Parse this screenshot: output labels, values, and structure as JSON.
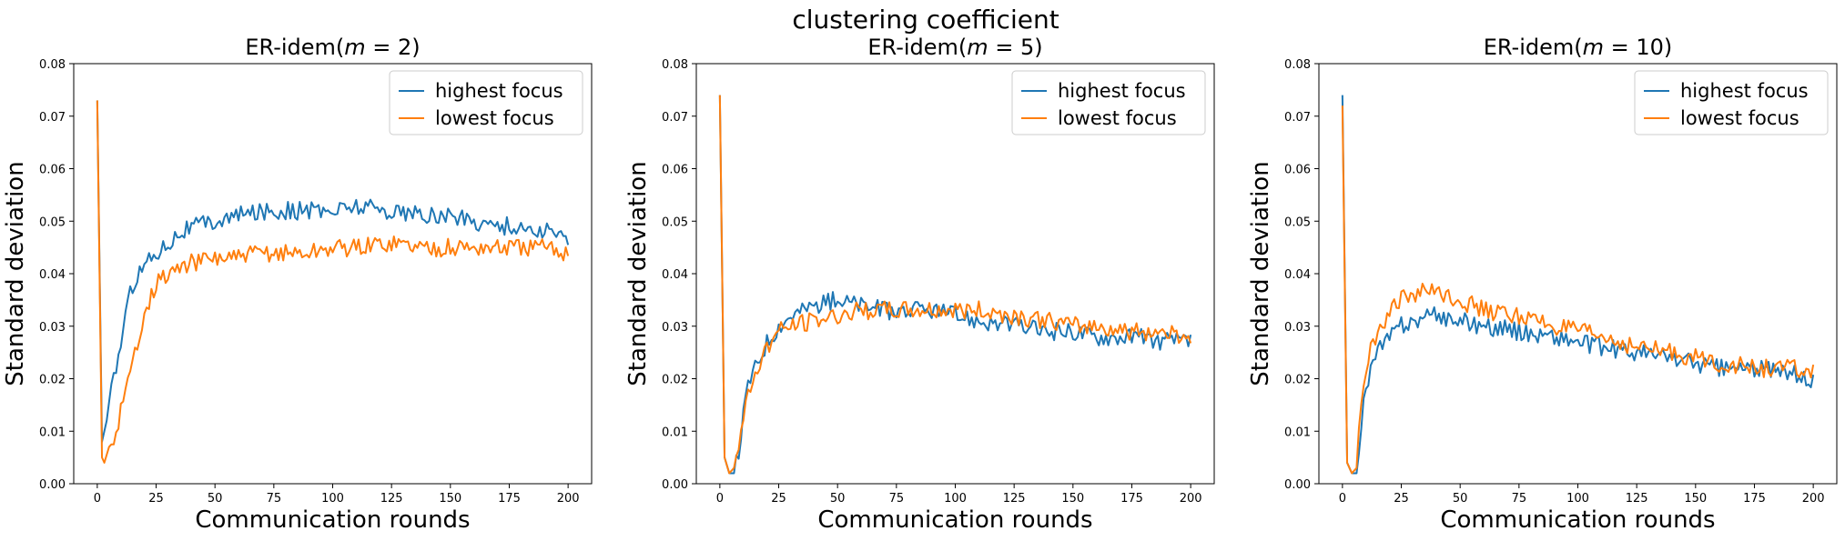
{
  "suptitle": "clustering coefficient",
  "colors": {
    "highest": "#1f77b4",
    "lowest": "#ff7f0e"
  },
  "chart_data": [
    {
      "type": "line",
      "title_prefix": "ER-idem(",
      "title_var": "m",
      "title_eq": " = 2",
      "title_suffix": ")",
      "xlabel": "Communication rounds",
      "ylabel": "Standard deviation",
      "xlim": [
        -10,
        210
      ],
      "ylim": [
        0,
        0.08
      ],
      "xticks": [
        0,
        25,
        50,
        75,
        100,
        125,
        150,
        175,
        200
      ],
      "yticks": [
        "0.00",
        "0.01",
        "0.02",
        "0.03",
        "0.04",
        "0.05",
        "0.06",
        "0.07",
        "0.08"
      ],
      "legend": [
        "highest focus",
        "lowest focus"
      ],
      "legend_loc": "upper right",
      "series": [
        {
          "name": "highest focus",
          "x": [
            0,
            2,
            4,
            6,
            8,
            10,
            12,
            15,
            20,
            25,
            30,
            35,
            40,
            50,
            60,
            70,
            80,
            90,
            100,
            110,
            125,
            140,
            150,
            160,
            175,
            190,
            200
          ],
          "values": [
            0.073,
            0.008,
            0.012,
            0.019,
            0.022,
            0.027,
            0.032,
            0.038,
            0.042,
            0.044,
            0.046,
            0.048,
            0.049,
            0.05,
            0.051,
            0.052,
            0.052,
            0.052,
            0.052,
            0.053,
            0.052,
            0.051,
            0.051,
            0.05,
            0.049,
            0.048,
            0.047
          ]
        },
        {
          "name": "lowest focus",
          "x": [
            0,
            2,
            3,
            5,
            7,
            10,
            12,
            15,
            20,
            25,
            30,
            35,
            40,
            50,
            60,
            70,
            80,
            90,
            100,
            110,
            125,
            140,
            150,
            160,
            175,
            190,
            200
          ],
          "values": [
            0.073,
            0.005,
            0.004,
            0.007,
            0.008,
            0.014,
            0.017,
            0.023,
            0.033,
            0.038,
            0.04,
            0.041,
            0.042,
            0.043,
            0.043,
            0.044,
            0.044,
            0.044,
            0.045,
            0.045,
            0.046,
            0.045,
            0.045,
            0.045,
            0.045,
            0.045,
            0.044
          ]
        }
      ]
    },
    {
      "type": "line",
      "title_prefix": "ER-idem(",
      "title_var": "m",
      "title_eq": " = 5",
      "title_suffix": ")",
      "xlabel": "Communication rounds",
      "ylabel": "Standard deviation",
      "xlim": [
        -10,
        210
      ],
      "ylim": [
        0,
        0.08
      ],
      "xticks": [
        0,
        25,
        50,
        75,
        100,
        125,
        150,
        175,
        200
      ],
      "yticks": [
        "0.00",
        "0.01",
        "0.02",
        "0.03",
        "0.04",
        "0.05",
        "0.06",
        "0.07",
        "0.08"
      ],
      "legend": [
        "highest focus",
        "lowest focus"
      ],
      "legend_loc": "upper right",
      "series": [
        {
          "name": "highest focus",
          "x": [
            0,
            2,
            4,
            6,
            8,
            10,
            12,
            15,
            20,
            25,
            30,
            40,
            50,
            60,
            70,
            80,
            90,
            100,
            110,
            125,
            140,
            150,
            160,
            175,
            190,
            200
          ],
          "values": [
            0.074,
            0.005,
            0.002,
            0.002,
            0.006,
            0.013,
            0.019,
            0.022,
            0.027,
            0.03,
            0.032,
            0.034,
            0.035,
            0.034,
            0.033,
            0.033,
            0.033,
            0.032,
            0.031,
            0.03,
            0.029,
            0.029,
            0.028,
            0.028,
            0.027,
            0.027
          ]
        },
        {
          "name": "lowest focus",
          "x": [
            0,
            2,
            4,
            6,
            8,
            10,
            12,
            15,
            20,
            25,
            30,
            40,
            50,
            60,
            70,
            80,
            90,
            100,
            110,
            125,
            140,
            150,
            160,
            175,
            190,
            200
          ],
          "values": [
            0.074,
            0.005,
            0.002,
            0.003,
            0.007,
            0.012,
            0.017,
            0.021,
            0.026,
            0.029,
            0.03,
            0.031,
            0.032,
            0.033,
            0.033,
            0.033,
            0.033,
            0.033,
            0.033,
            0.032,
            0.031,
            0.03,
            0.03,
            0.029,
            0.029,
            0.028
          ]
        }
      ]
    },
    {
      "type": "line",
      "title_prefix": "ER-idem(",
      "title_var": "m",
      "title_eq": " = 10",
      "title_suffix": ")",
      "xlabel": "Communication rounds",
      "ylabel": "Standard deviation",
      "xlim": [
        -10,
        210
      ],
      "ylim": [
        0,
        0.08
      ],
      "xticks": [
        0,
        25,
        50,
        75,
        100,
        125,
        150,
        175,
        200
      ],
      "yticks": [
        "0.00",
        "0.01",
        "0.02",
        "0.03",
        "0.04",
        "0.05",
        "0.06",
        "0.07",
        "0.08"
      ],
      "legend": [
        "highest focus",
        "lowest focus"
      ],
      "legend_loc": "upper right",
      "series": [
        {
          "name": "highest focus",
          "x": [
            0,
            2,
            4,
            6,
            8,
            10,
            12,
            15,
            20,
            25,
            30,
            40,
            50,
            60,
            75,
            90,
            100,
            110,
            125,
            140,
            150,
            160,
            175,
            190,
            200
          ],
          "values": [
            0.074,
            0.004,
            0.002,
            0.002,
            0.012,
            0.018,
            0.022,
            0.025,
            0.028,
            0.03,
            0.031,
            0.032,
            0.031,
            0.03,
            0.029,
            0.028,
            0.027,
            0.026,
            0.025,
            0.024,
            0.023,
            0.022,
            0.022,
            0.021,
            0.02
          ]
        },
        {
          "name": "lowest focus",
          "x": [
            0,
            2,
            4,
            6,
            8,
            10,
            12,
            15,
            20,
            25,
            30,
            40,
            50,
            60,
            75,
            90,
            100,
            110,
            125,
            140,
            150,
            160,
            175,
            190,
            200
          ],
          "values": [
            0.072,
            0.004,
            0.002,
            0.003,
            0.016,
            0.022,
            0.026,
            0.029,
            0.033,
            0.035,
            0.036,
            0.037,
            0.035,
            0.033,
            0.032,
            0.03,
            0.029,
            0.028,
            0.026,
            0.025,
            0.024,
            0.023,
            0.022,
            0.022,
            0.021
          ]
        }
      ]
    }
  ]
}
